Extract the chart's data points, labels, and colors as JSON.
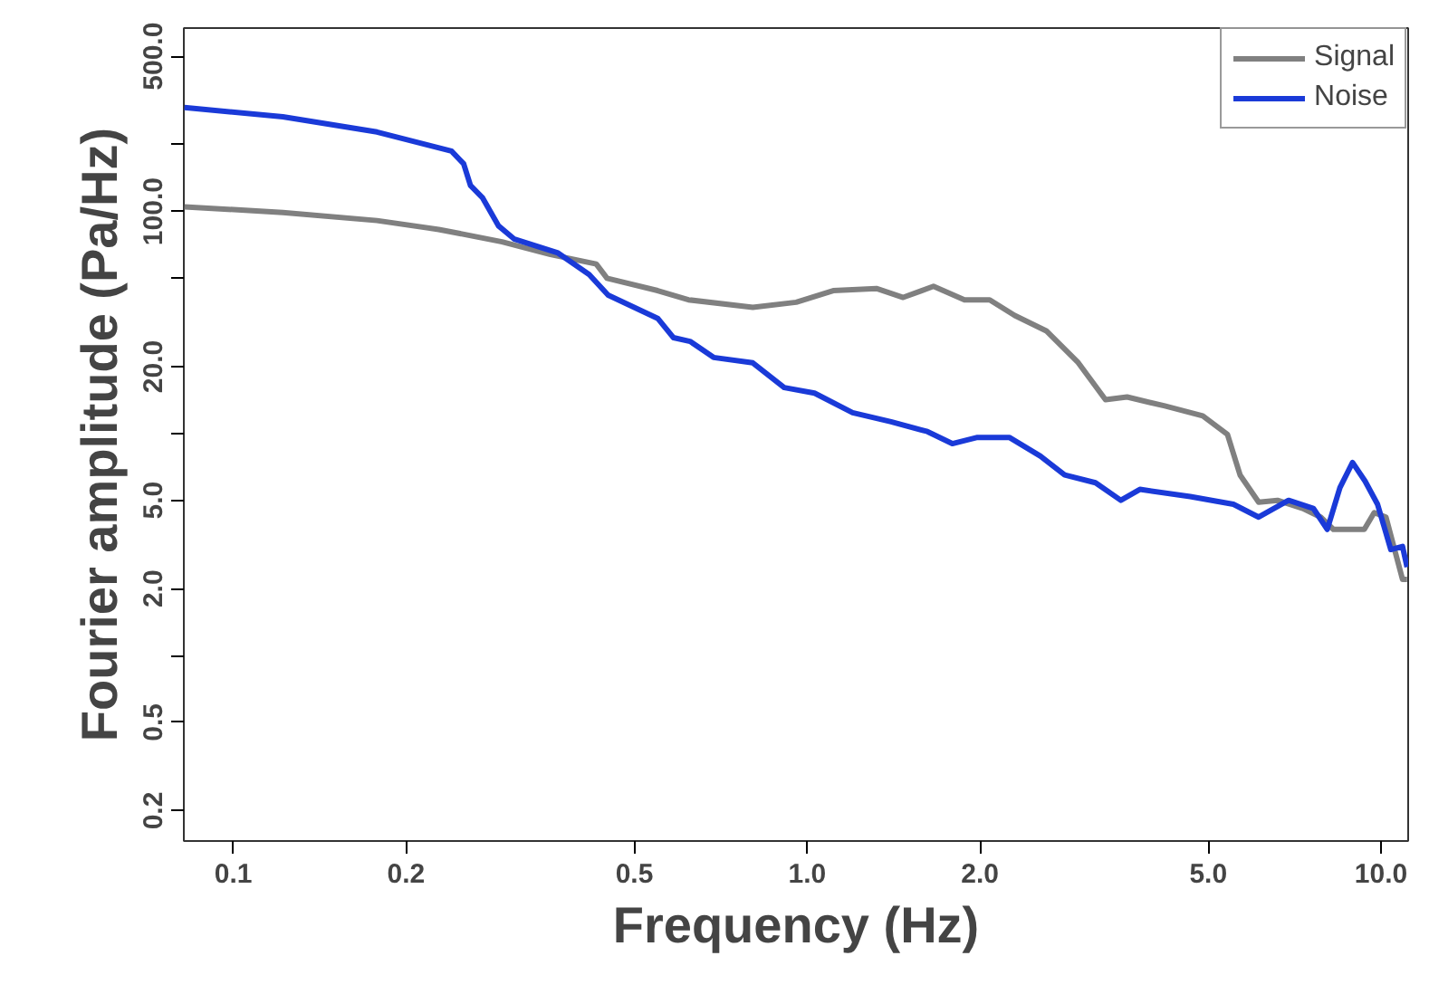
{
  "chart_data": {
    "type": "line",
    "xlabel": "Frequency (Hz)",
    "ylabel": "Fourier amplitude (Pa/Hz)",
    "log": "xy",
    "grid": false,
    "legend": "top right",
    "xlim": [
      0.082,
      11.15
    ],
    "ylim": [
      0.146,
      670
    ],
    "xticks": [
      0.1,
      0.2,
      0.5,
      {
        "value": 1,
        "label": "1.0"
      },
      {
        "value": 2,
        "label": "2.0"
      },
      {
        "value": 5,
        "label": "5.0"
      },
      {
        "value": 10,
        "label": "10.0"
      }
    ],
    "yticks": [
      0.2,
      0.5,
      {
        "value": 1,
        "label": null
      },
      {
        "value": 2,
        "label": "2.0"
      },
      {
        "value": 5,
        "label": "5.0"
      },
      {
        "value": 10,
        "label": null
      },
      {
        "value": 20,
        "label": "20.0"
      },
      {
        "value": 50,
        "label": null
      },
      {
        "value": 100,
        "label": "100.0"
      },
      {
        "value": 200,
        "label": null
      },
      {
        "value": 500,
        "label": "500.0"
      }
    ],
    "series": [
      {
        "name": "Signal",
        "color": "#808080",
        "x": [
          0.0822,
          0.122,
          0.178,
          0.228,
          0.294,
          0.357,
          0.429,
          0.448,
          0.549,
          0.621,
          0.804,
          0.957,
          1.11,
          1.32,
          1.47,
          1.66,
          1.88,
          2.08,
          2.3,
          2.61,
          2.96,
          3.31,
          3.61,
          4.2,
          4.89,
          5.4,
          5.68,
          6.12,
          6.6,
          7.3,
          7.85,
          8.26,
          9.35,
          9.73,
          10.2,
          10.9,
          11.1
        ],
        "values": [
          105,
          99,
          91,
          83,
          73,
          64,
          58,
          50,
          44,
          40,
          37,
          39,
          44,
          45,
          41,
          46,
          40,
          40,
          34,
          29,
          21,
          14.2,
          14.6,
          13.3,
          12.0,
          9.9,
          6.5,
          4.9,
          5.0,
          4.6,
          4.2,
          3.7,
          3.7,
          4.4,
          4.2,
          2.2,
          2.2
        ]
      },
      {
        "name": "Noise",
        "color": "#1a3ad8",
        "x": [
          0.0822,
          0.122,
          0.178,
          0.24,
          0.252,
          0.259,
          0.272,
          0.29,
          0.309,
          0.368,
          0.417,
          0.45,
          0.549,
          0.585,
          0.625,
          0.687,
          0.804,
          0.912,
          1.03,
          1.2,
          1.4,
          1.62,
          1.79,
          1.98,
          2.25,
          2.55,
          2.81,
          3.18,
          3.52,
          3.8,
          4.65,
          5.53,
          6.12,
          6.9,
          7.62,
          8.06,
          8.48,
          8.92,
          9.38,
          9.86,
          10.4,
          10.9,
          11.1
        ],
        "values": [
          294,
          267,
          228,
          187,
          164,
          131,
          115,
          86,
          75,
          65,
          52,
          42,
          33,
          27,
          26,
          22,
          20.8,
          16.1,
          15.2,
          12.4,
          11.3,
          10.2,
          9.0,
          9.6,
          9.6,
          7.9,
          6.5,
          6.0,
          5.0,
          5.6,
          5.2,
          4.8,
          4.2,
          5.0,
          4.6,
          3.7,
          5.7,
          7.4,
          6.1,
          4.8,
          3.0,
          3.1,
          2.5
        ]
      }
    ]
  }
}
